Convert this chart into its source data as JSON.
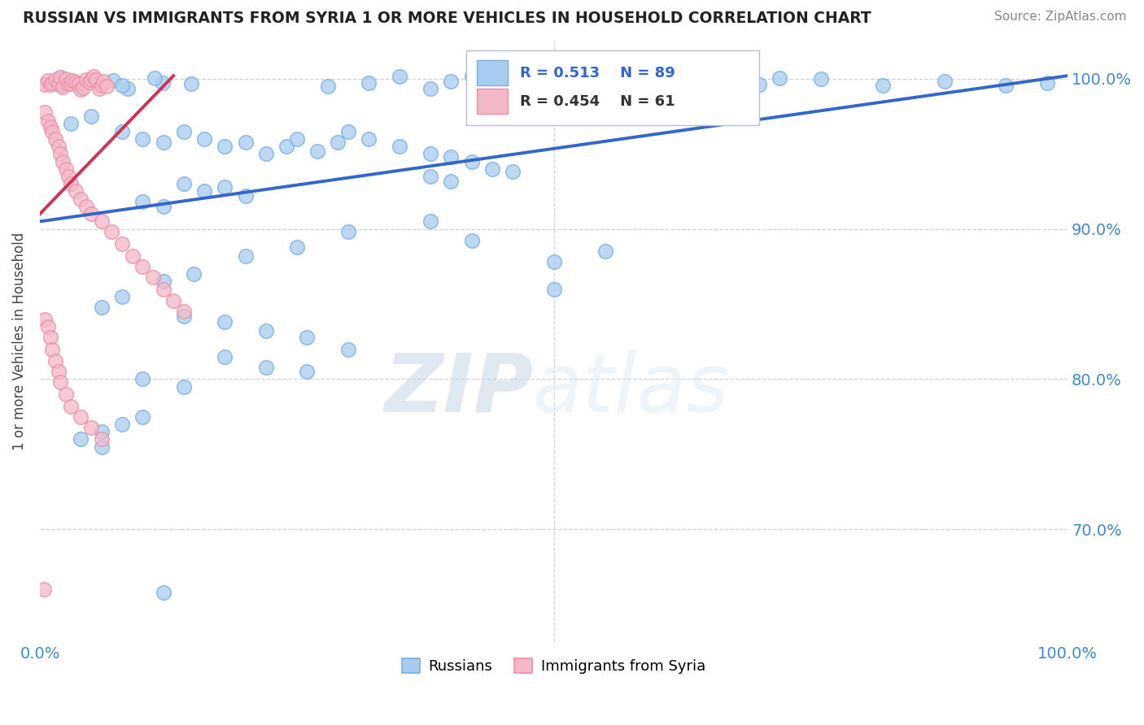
{
  "title": "RUSSIAN VS IMMIGRANTS FROM SYRIA 1 OR MORE VEHICLES IN HOUSEHOLD CORRELATION CHART",
  "source": "Source: ZipAtlas.com",
  "ylabel": "1 or more Vehicles in Household",
  "watermark_zip": "ZIP",
  "watermark_atlas": "atlas",
  "xlim": [
    0.0,
    1.0
  ],
  "ylim": [
    0.625,
    1.025
  ],
  "yticks": [
    0.7,
    0.8,
    0.9,
    1.0
  ],
  "ytick_labels": [
    "70.0%",
    "80.0%",
    "90.0%",
    "100.0%"
  ],
  "xtick_labels": [
    "0.0%",
    "100.0%"
  ],
  "xtick_positions": [
    0.0,
    1.0
  ],
  "russian_R": 0.513,
  "russian_N": 89,
  "syria_R": 0.454,
  "syria_N": 61,
  "russian_color": "#A8CCF0",
  "russia_edge_color": "#7AAEDE",
  "syria_color": "#F5B8C8",
  "syria_edge_color": "#E890A8",
  "russian_line_color": "#3366CC",
  "syria_line_color": "#CC3355",
  "background_color": "#FFFFFF",
  "grid_color": "#CCCCCC",
  "legend_label_russian": "Russians",
  "legend_label_syria": "Immigrants from Syria",
  "title_color": "#222222",
  "source_color": "#888888",
  "axis_color": "#4488CC",
  "ylabel_color": "#444444"
}
